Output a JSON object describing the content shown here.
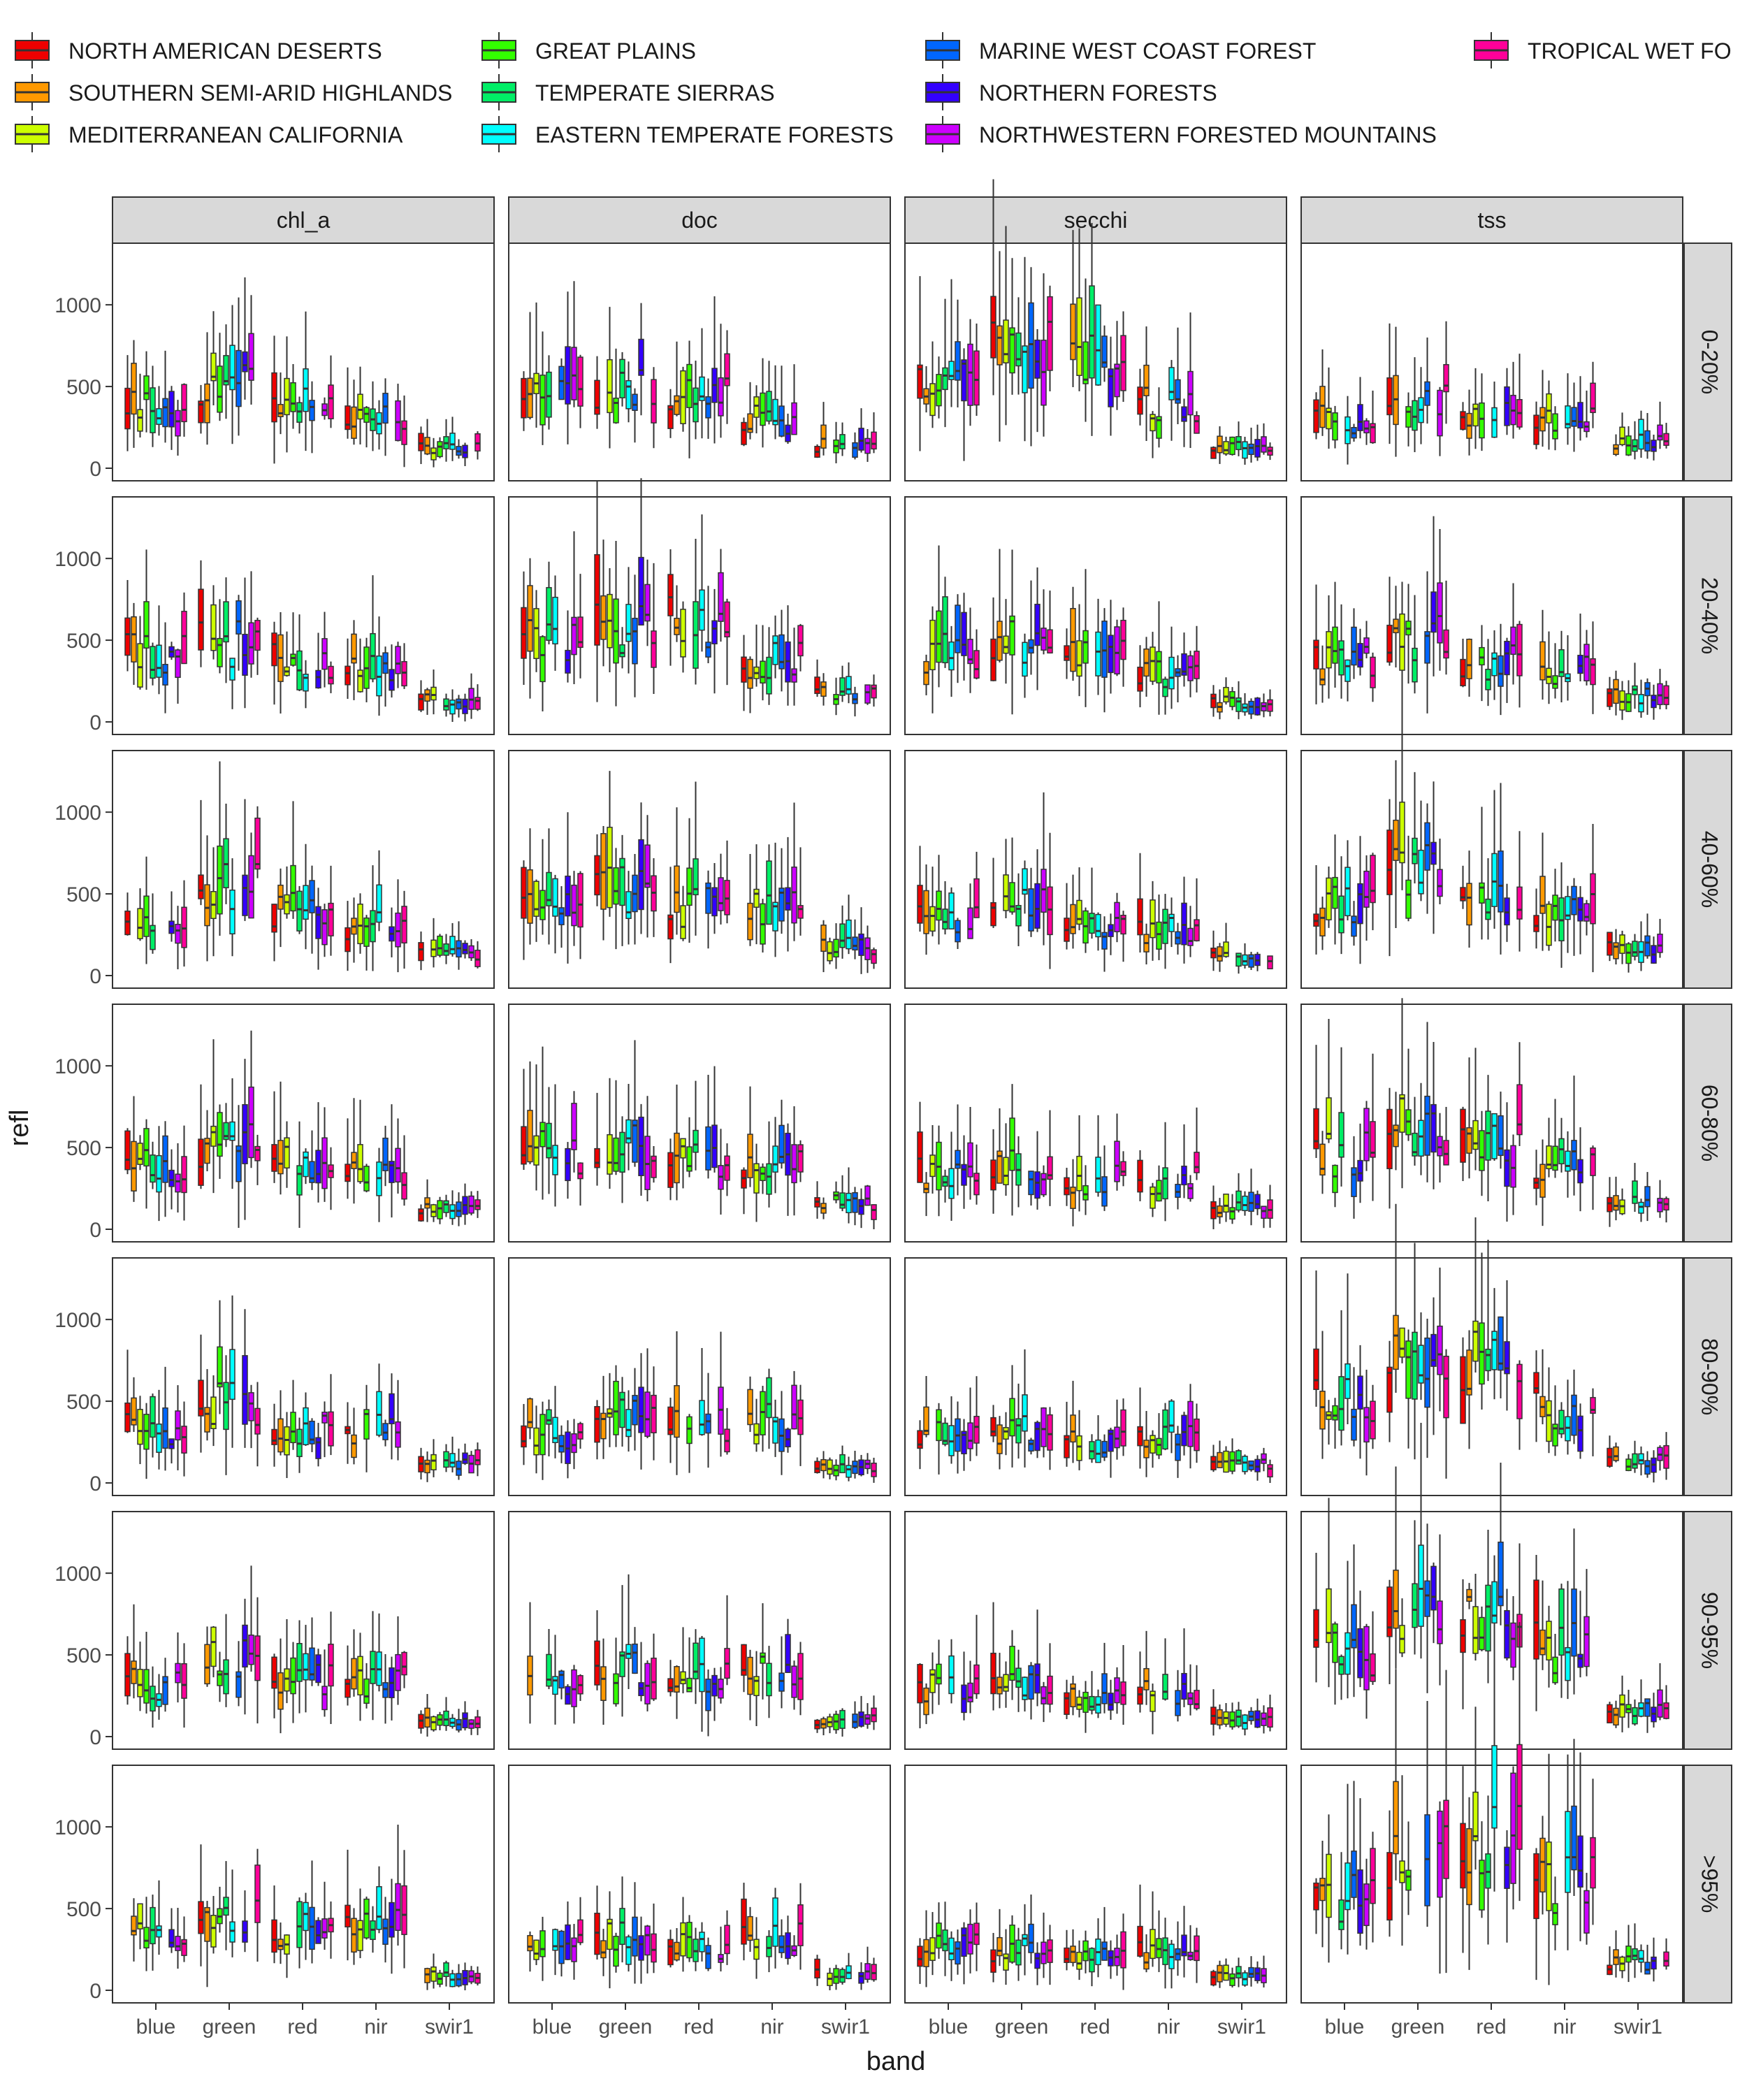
{
  "chart_data": {
    "type": "boxplot",
    "xlabel": "band",
    "ylabel": "refl",
    "ylim": [
      0,
      1300
    ],
    "yticks": [
      0,
      500,
      1000
    ],
    "grid": false,
    "legend_position": "top",
    "bands": [
      "blue",
      "green",
      "red",
      "nir",
      "swir1"
    ],
    "facet_columns": [
      "chl_a",
      "doc",
      "secchi",
      "tss"
    ],
    "facet_rows": [
      "0-20%",
      "20-40%",
      "40-60%",
      "60-80%",
      "80-90%",
      "90-95%",
      ">95%"
    ],
    "legend": [
      {
        "name": "NORTH AMERICAN DESERTS",
        "color": "#ee0000"
      },
      {
        "name": "SOUTHERN SEMI-ARID HIGHLANDS",
        "color": "#ff9900"
      },
      {
        "name": "MEDITERRANEAN CALIFORNIA",
        "color": "#ccff00"
      },
      {
        "name": "GREAT PLAINS",
        "color": "#33ff00"
      },
      {
        "name": "TEMPERATE SIERRAS",
        "color": "#00ee66"
      },
      {
        "name": "EASTERN TEMPERATE FORESTS",
        "color": "#00ffff"
      },
      {
        "name": "MARINE WEST COAST FOREST",
        "color": "#0066ff"
      },
      {
        "name": "NORTHERN FORESTS",
        "color": "#3300ff"
      },
      {
        "name": "NORTHWESTERN FORESTED MOUNTAINS",
        "color": "#cc00ff"
      },
      {
        "name": "TROPICAL WET FO",
        "color": "#ff0099"
      }
    ],
    "band_base_medians": {
      "chl_a": [
        [
          380,
          500,
          380,
          300,
          130
        ],
        [
          420,
          480,
          380,
          320,
          130
        ],
        [
          380,
          560,
          400,
          300,
          130
        ],
        [
          380,
          500,
          400,
          330,
          130
        ],
        [
          330,
          480,
          330,
          330,
          110
        ],
        [
          320,
          470,
          340,
          350,
          90
        ],
        [
          330,
          460,
          360,
          400,
          90
        ]
      ],
      "doc": [
        [
          440,
          480,
          430,
          300,
          140
        ],
        [
          500,
          600,
          600,
          380,
          170
        ],
        [
          420,
          520,
          420,
          400,
          180
        ],
        [
          470,
          500,
          420,
          440,
          160
        ],
        [
          300,
          400,
          350,
          380,
          100
        ],
        [
          300,
          400,
          350,
          400,
          100
        ],
        [
          280,
          320,
          270,
          330,
          100
        ]
      ],
      "secchi": [
        [
          500,
          700,
          650,
          400,
          130
        ],
        [
          420,
          500,
          420,
          300,
          120
        ],
        [
          330,
          430,
          300,
          280,
          120
        ],
        [
          340,
          380,
          300,
          300,
          130
        ],
        [
          300,
          330,
          250,
          280,
          110
        ],
        [
          300,
          300,
          260,
          270,
          100
        ],
        [
          270,
          250,
          200,
          230,
          90
        ]
      ],
      "tss": [
        [
          300,
          400,
          320,
          300,
          160
        ],
        [
          370,
          500,
          370,
          330,
          160
        ],
        [
          420,
          630,
          450,
          400,
          160
        ],
        [
          460,
          650,
          520,
          400,
          160
        ],
        [
          520,
          700,
          720,
          450,
          140
        ],
        [
          520,
          750,
          800,
          550,
          160
        ],
        [
          550,
          820,
          870,
          650,
          170
        ]
      ]
    }
  }
}
